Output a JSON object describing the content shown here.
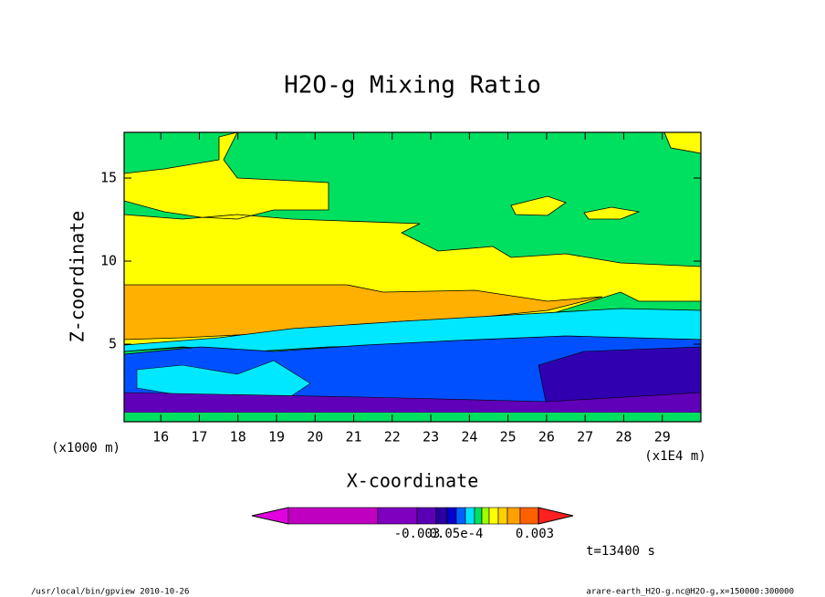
{
  "chart_data": {
    "type": "contour",
    "title": "H2O-g Mixing Ratio",
    "xlabel": "X-coordinate",
    "ylabel": "Z-coordinate",
    "xunit": "(x1E4 m)",
    "yunit": "(x1000 m)",
    "xlim": [
      15.05,
      30.0
    ],
    "xticks": [
      16,
      17,
      18,
      19,
      20,
      21,
      22,
      23,
      24,
      25,
      26,
      27,
      28,
      29
    ],
    "ylim": [
      0.33,
      17.75
    ],
    "yticks": [
      5,
      10,
      15
    ],
    "colorbar": {
      "colors": [
        "#c000c0",
        "#8000c0",
        "#5a00b4",
        "#2800a0",
        "#0000d0",
        "#0060ff",
        "#00e0ff",
        "#00e060",
        "#a0ff00",
        "#ffff00",
        "#ffd000",
        "#ffa000",
        "#ff6000"
      ],
      "under_color": "#e000e0",
      "over_color": "#ff2020",
      "labels": [
        "-0.003",
        "0.05e-4",
        "0.003"
      ]
    },
    "time_label": "t=13400 s",
    "footer_left": "/usr/local/bin/gpview  2010-10-26",
    "footer_right": "arare-earth_H2O-g.nc@H2O-g,x=150000:300000"
  }
}
